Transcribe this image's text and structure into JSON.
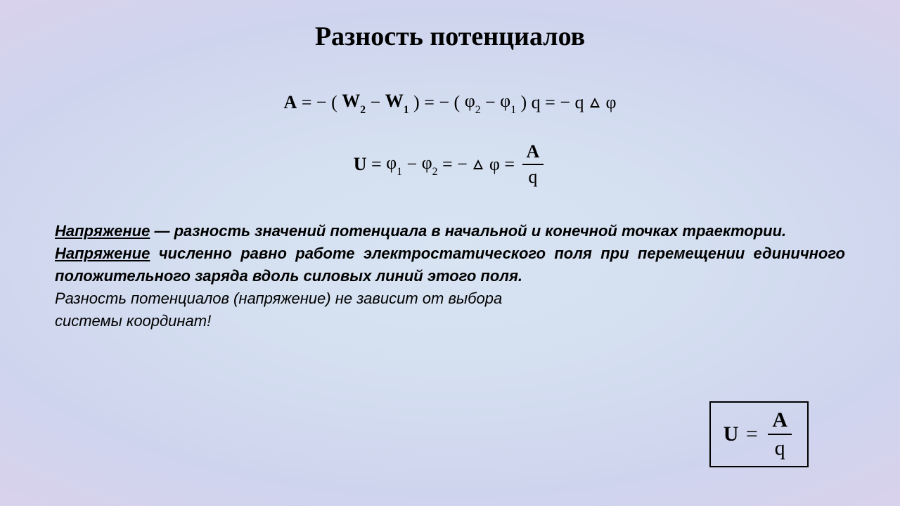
{
  "title": "Разность потенциалов",
  "formula1": {
    "A": "A",
    "eq": "=",
    "neg1": "− (",
    "W2": "W",
    "s2": "2",
    "minus": "−",
    "W1": "W",
    "s1": "1",
    "closeA": ")",
    "eq2": "=",
    "neg2": "− (",
    "phi2": "φ",
    "sphi2": "2",
    "phi1": "φ",
    "sphi1": "1",
    "closeB": ")",
    "q": "q",
    "eq3": "=",
    "neg3": "− q",
    "dphi": "φ"
  },
  "formula2": {
    "U": "U",
    "eq": "=",
    "phi1": "φ",
    "s1": "1",
    "minus": "−",
    "phi2": "φ",
    "s2": "2",
    "eq2": "=",
    "neg": "−",
    "dphi": "φ",
    "eq3": "=",
    "fracA": "A",
    "fracQ": "q"
  },
  "text": {
    "def1_start": "Напряжение",
    "def1_rest": " — разность значений потенциала в начальной и конечной точках траектории.",
    "def2_start": "Напряжение",
    "def2_rest": " численно равно работе электростатического поля при перемещении единичного положительного заряда вдоль силовых линий этого поля.",
    "note_l1": "Разность потенциалов (напряжение) не зависит от выбора",
    "note_l2": "системы координат!"
  },
  "boxed": {
    "U": "U",
    "eq": "=",
    "A": "A",
    "q": "q"
  },
  "colors": {
    "text": "#000000",
    "bg_center": "#d8e4f2",
    "bg_edge": "#e8d6ef"
  }
}
